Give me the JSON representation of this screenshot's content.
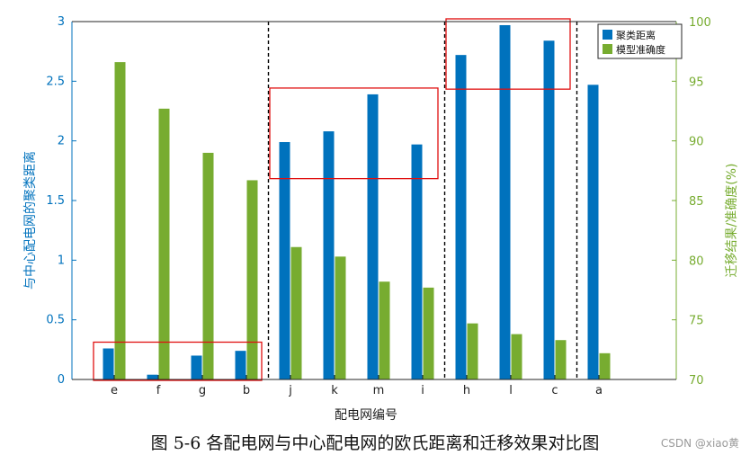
{
  "chart_data": {
    "type": "bar",
    "categories": [
      "e",
      "f",
      "g",
      "b",
      "j",
      "k",
      "m",
      "i",
      "h",
      "l",
      "c",
      "a"
    ],
    "series": [
      {
        "name": "聚类距离",
        "axis": "left",
        "color": "#0072BD",
        "values": [
          0.26,
          0.04,
          0.2,
          0.24,
          1.99,
          2.08,
          2.39,
          1.97,
          2.72,
          2.97,
          2.84,
          2.47
        ]
      },
      {
        "name": "模型准确度",
        "axis": "right",
        "color": "#77AC30",
        "values": [
          96.6,
          92.7,
          89.0,
          86.7,
          81.1,
          80.3,
          78.2,
          77.7,
          74.7,
          73.8,
          73.3,
          72.2
        ]
      }
    ],
    "xlabel": "配电网编号",
    "ylabel_left": "与中心配电网的聚类距离",
    "ylabel_right": "迁移结果/准确度(%)",
    "ylim_left": [
      0,
      3
    ],
    "ylim_right": [
      70,
      100
    ],
    "yticks_left": [
      "0",
      "0.5",
      "1",
      "1.5",
      "2",
      "2.5",
      "3"
    ],
    "yticks_right": [
      "70",
      "75",
      "80",
      "85",
      "90",
      "95",
      "100"
    ],
    "legend": {
      "position": "top-right",
      "entries": [
        "聚类距离",
        "模型准确度"
      ]
    },
    "group_separators_after": [
      "b",
      "i",
      "c"
    ],
    "highlight_groups": [
      {
        "from": "e",
        "to": "b",
        "series": "聚类距离"
      },
      {
        "from": "j",
        "to": "i",
        "series": "聚类距离"
      },
      {
        "from": "h",
        "to": "c",
        "series": "聚类距离"
      }
    ],
    "colors": {
      "left_axis": "#0072BD",
      "right_axis": "#77AC30",
      "highlight": "#e01010",
      "separator": "#000000"
    }
  },
  "caption": "图 5-6  各配电网与中心配电网的欧氏距离和迁移效果对比图",
  "watermark": "CSDN @xiao黄"
}
